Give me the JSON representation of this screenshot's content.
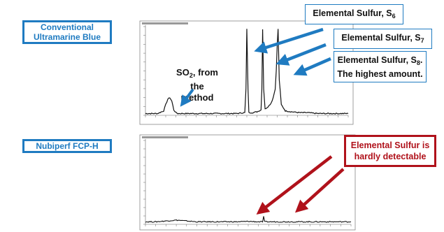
{
  "samples": {
    "top": {
      "line1": "Conventional",
      "line2": "Ultramarine Blue"
    },
    "bottom": {
      "label": "Nubiperf FCP-H"
    }
  },
  "callouts": {
    "s6": {
      "text": "Elemental Sulfur, S",
      "sub": "6"
    },
    "s7": {
      "text": "Elemental Sulfur, S",
      "sub": "7"
    },
    "s8": {
      "text": "Elemental Sulfur, S",
      "sub": "8",
      "after": ".",
      "line2": "The highest amount."
    },
    "so2": {
      "prefix": "SO",
      "sub": "2",
      "suffix": ", from the",
      "line2": "method"
    },
    "red": {
      "line1": "Elemental Sulfur is",
      "line2": "hardly detectable"
    }
  },
  "colors": {
    "accent_blue": "#1f7bc1",
    "accent_red": "#b0121b",
    "trace": "#111111"
  },
  "chart_data": [
    {
      "type": "line",
      "series": [
        {
          "x": [
            0,
            3,
            6,
            9,
            10,
            11,
            12,
            13,
            14,
            15,
            16,
            18,
            20,
            25,
            30,
            35,
            40,
            45,
            49,
            49.6,
            50,
            50.6,
            51,
            53,
            55,
            56,
            57,
            57.4,
            57.8,
            58.3,
            59,
            60,
            61,
            62,
            63,
            64,
            64.5,
            65,
            65.4,
            66,
            67,
            69,
            72,
            76,
            80,
            85,
            90,
            95,
            100
          ],
          "y": [
            0.02,
            0.02,
            0.02,
            0.05,
            0.12,
            0.18,
            0.2,
            0.16,
            0.06,
            0.03,
            0.02,
            0.02,
            0.02,
            0.02,
            0.02,
            0.02,
            0.02,
            0.02,
            0.03,
            0.3,
            0.97,
            0.3,
            0.03,
            0.03,
            0.04,
            0.05,
            0.06,
            0.3,
            0.97,
            0.3,
            0.07,
            0.09,
            0.11,
            0.14,
            0.2,
            0.3,
            0.5,
            0.8,
            0.97,
            0.4,
            0.12,
            0.05,
            0.04,
            0.03,
            0.03,
            0.02,
            0.02,
            0.02,
            0.02
          ]
        }
      ]
    },
    {
      "type": "line",
      "series": [
        {
          "x": [
            0,
            5,
            10,
            15,
            20,
            25,
            30,
            35,
            40,
            45,
            50,
            55,
            57,
            57.5,
            58,
            60,
            65,
            70,
            75,
            80,
            85,
            90,
            95,
            100
          ],
          "y": [
            0.03,
            0.03,
            0.04,
            0.05,
            0.04,
            0.03,
            0.03,
            0.03,
            0.03,
            0.03,
            0.035,
            0.03,
            0.03,
            0.09,
            0.03,
            0.03,
            0.03,
            0.03,
            0.03,
            0.03,
            0.03,
            0.03,
            0.03,
            0.03
          ]
        }
      ]
    }
  ]
}
